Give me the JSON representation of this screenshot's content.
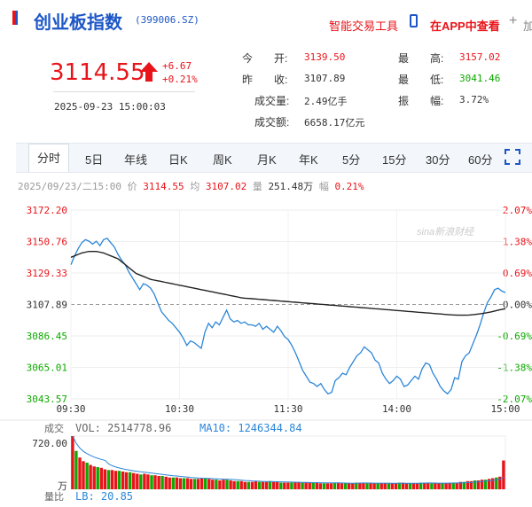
{
  "header": {
    "title": "创业板指数",
    "code": "(399006.SZ)",
    "tool_link": "智能交易工具",
    "app_link": "在APP中查看",
    "add_label": "加"
  },
  "quote": {
    "price": "3114.55",
    "change": "+6.67",
    "change_pct": "+0.21%",
    "datetime": "2025-09-23 15:00:03",
    "fields": {
      "open_label": "今　　开:",
      "open": "3139.50",
      "prev_label": "昨　　收:",
      "prev": "3107.89",
      "volume_label": "成交量:",
      "volume": "2.49亿手",
      "amount_label": "成交额:",
      "amount": "6658.17亿元",
      "high_label": "最　　高:",
      "high": "3157.02",
      "low_label": "最　　低:",
      "low": "3041.46",
      "amp_label": "振　　幅:",
      "amp": "3.72%"
    }
  },
  "tabs": [
    "分时",
    "5日",
    "年线",
    "日K",
    "周K",
    "月K",
    "年K",
    "5分",
    "15分",
    "30分",
    "60分"
  ],
  "info_bar": {
    "datetime": "2025/09/23/二15:00",
    "price_label": "价",
    "price": "3114.55",
    "avg_label": "均",
    "avg": "3107.02",
    "volume_label": "量",
    "volume": "251.48万",
    "amp_label": "幅",
    "amp": "0.21%"
  },
  "watermark": "sina新浪财经",
  "colors": {
    "up": "#e8141a",
    "down": "#0ea800",
    "price_line": "#2b86d9",
    "avg_line": "#222222",
    "brand": "#1d57c7"
  },
  "chart_data": {
    "type": "line",
    "x_ticks": [
      "09:30",
      "10:30",
      "11:30",
      "14:00",
      "15:00"
    ],
    "y_left": [
      "3172.20",
      "3150.76",
      "3129.33",
      "3107.89",
      "3086.45",
      "3065.01",
      "3043.57"
    ],
    "y_right": [
      "2.07%",
      "1.38%",
      "0.69%",
      "0.00%",
      "-0.69%",
      "-1.38%",
      "-2.07%"
    ],
    "ylim": [
      3043.57,
      3172.2
    ],
    "prev_close": 3107.89,
    "series": [
      {
        "values": [
          3135,
          3141,
          3146,
          3150,
          3152,
          3151,
          3149,
          3151,
          3148,
          3152,
          3153,
          3150,
          3147,
          3142,
          3138,
          3135,
          3130,
          3126,
          3122,
          3118,
          3122,
          3121,
          3119,
          3115,
          3109,
          3103,
          3100,
          3097,
          3095,
          3092,
          3089,
          3085,
          3080,
          3083,
          3082,
          3080,
          3078,
          3089,
          3095,
          3092,
          3096,
          3094,
          3099,
          3104,
          3098,
          3096,
          3097,
          3095,
          3096,
          3094,
          3094,
          3093,
          3095,
          3091,
          3093,
          3091,
          3089,
          3093,
          3090,
          3086,
          3084,
          3080,
          3075,
          3069,
          3063,
          3059,
          3055,
          3054,
          3052,
          3054,
          3050,
          3047,
          3048,
          3056,
          3058,
          3061,
          3060,
          3065,
          3069,
          3073,
          3075,
          3079,
          3077,
          3075,
          3070,
          3068,
          3061,
          3057,
          3054,
          3056,
          3059,
          3057,
          3052,
          3053,
          3056,
          3059,
          3057,
          3064,
          3068,
          3067,
          3061,
          3057,
          3052,
          3049,
          3047,
          3050,
          3058,
          3057,
          3069,
          3073,
          3075,
          3081,
          3087,
          3094,
          3102,
          3109,
          3113,
          3118,
          3119,
          3117,
          3116
        ],
        "color": "#2b86d9"
      },
      {
        "values": [
          3140,
          3141,
          3142,
          3143,
          3143.5,
          3144,
          3144,
          3144,
          3143.5,
          3143,
          3142,
          3141,
          3140,
          3139,
          3137,
          3135,
          3133,
          3131,
          3129,
          3128,
          3127,
          3126,
          3125,
          3124.5,
          3124,
          3123.5,
          3123,
          3122.5,
          3122,
          3121.5,
          3121,
          3120.5,
          3120,
          3119.5,
          3119,
          3118.5,
          3118,
          3117.5,
          3117,
          3116.5,
          3116,
          3115.5,
          3115,
          3114.5,
          3114,
          3113.5,
          3113,
          3112.5,
          3112.2,
          3112,
          3111.8,
          3111.6,
          3111.4,
          3111.2,
          3111,
          3110.8,
          3110.6,
          3110.4,
          3110.2,
          3110,
          3109.8,
          3109.6,
          3109.4,
          3109.2,
          3109,
          3108.8,
          3108.6,
          3108.4,
          3108.2,
          3108,
          3107.8,
          3107.6,
          3107.4,
          3107.2,
          3107,
          3106.8,
          3106.6,
          3106.4,
          3106.2,
          3106,
          3105.8,
          3105.6,
          3105.4,
          3105.2,
          3105,
          3104.8,
          3104.6,
          3104.4,
          3104.2,
          3104,
          3103.8,
          3103.6,
          3103.4,
          3103.2,
          3103,
          3102.8,
          3102.6,
          3102.4,
          3102.2,
          3102,
          3101.8,
          3101.6,
          3101.4,
          3101.2,
          3101,
          3100.8,
          3100.7,
          3100.6,
          3100.6,
          3100.6,
          3100.7,
          3100.9,
          3101.2,
          3101.5,
          3101.9,
          3102.3,
          3102.8,
          3103.4,
          3104,
          3104.5,
          3105
        ],
        "color": "#222222"
      }
    ],
    "volume": {
      "label": "成交",
      "vol_text": "VOL: 2514778.96",
      "ma10_text": "MA10: 1246344.84",
      "ymax_label": "720.00",
      "unit": "万",
      "values": [
        720,
        520,
        430,
        380,
        360,
        330,
        310,
        300,
        290,
        270,
        260,
        260,
        250,
        250,
        240,
        230,
        230,
        220,
        210,
        200,
        210,
        200,
        190,
        190,
        180,
        180,
        170,
        160,
        160,
        160,
        150,
        150,
        150,
        140,
        140,
        140,
        150,
        150,
        140,
        130,
        130,
        120,
        130,
        130,
        120,
        110,
        110,
        110,
        100,
        100,
        100,
        110,
        100,
        100,
        100,
        110,
        100,
        100,
        90,
        90,
        90,
        90,
        90,
        90,
        90,
        90,
        90,
        90,
        90,
        80,
        80,
        80,
        80,
        90,
        90,
        80,
        80,
        80,
        80,
        90,
        90,
        90,
        80,
        80,
        80,
        80,
        80,
        80,
        80,
        80,
        80,
        90,
        90,
        80,
        80,
        80,
        80,
        90,
        90,
        90,
        80,
        80,
        80,
        80,
        80,
        90,
        90,
        90,
        100,
        100,
        110,
        110,
        120,
        120,
        130,
        130,
        140,
        150,
        160,
        170,
        390
      ]
    },
    "lb": {
      "label": "量比",
      "text": "LB: 20.85"
    }
  }
}
